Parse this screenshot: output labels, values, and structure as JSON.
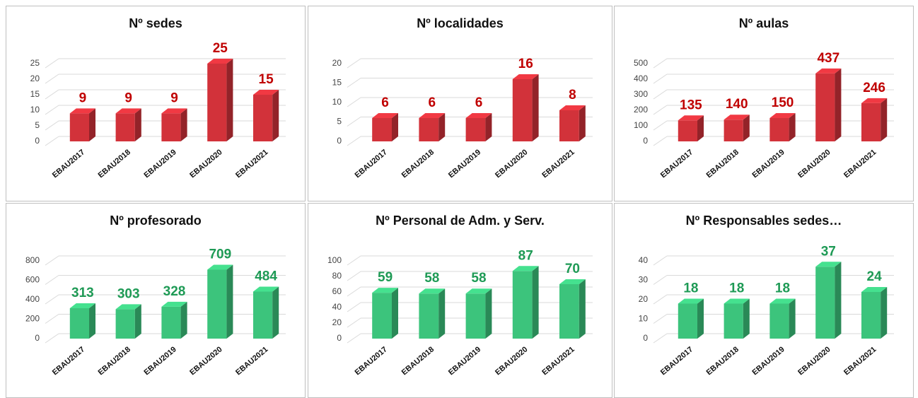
{
  "chart_data": [
    {
      "type": "bar3d",
      "title": "Nº sedes",
      "categories": [
        "EBAU2017",
        "EBAU2018",
        "EBAU2019",
        "EBAU2020",
        "EBAU2021"
      ],
      "values": [
        9,
        9,
        9,
        25,
        15
      ],
      "color": "#d2323a",
      "label_color": "#c00000",
      "ylim": [
        0,
        25
      ],
      "yticks": [
        0,
        5,
        10,
        15,
        20,
        25
      ],
      "grid": true
    },
    {
      "type": "bar3d",
      "title": "Nº localidades",
      "categories": [
        "EBAU2017",
        "EBAU2018",
        "EBAU2019",
        "EBAU2020",
        "EBAU2021"
      ],
      "values": [
        6,
        6,
        6,
        16,
        8
      ],
      "color": "#d2323a",
      "label_color": "#c00000",
      "ylim": [
        0,
        20
      ],
      "yticks": [
        0,
        5,
        10,
        15,
        20
      ],
      "grid": true
    },
    {
      "type": "bar3d",
      "title": "Nº aulas",
      "categories": [
        "EBAU2017",
        "EBAU2018",
        "EBAU2019",
        "EBAU2020",
        "EBAU2021"
      ],
      "values": [
        135,
        140,
        150,
        437,
        246
      ],
      "color": "#d2323a",
      "label_color": "#c00000",
      "ylim": [
        0,
        500
      ],
      "yticks": [
        0,
        100,
        200,
        300,
        400,
        500
      ],
      "grid": true
    },
    {
      "type": "bar3d",
      "title": "Nº profesorado",
      "categories": [
        "EBAU2017",
        "EBAU2018",
        "EBAU2019",
        "EBAU2020",
        "EBAU2021"
      ],
      "values": [
        313,
        303,
        328,
        709,
        484
      ],
      "color": "#3cc47c",
      "label_color": "#1e9a55",
      "ylim": [
        0,
        800
      ],
      "yticks": [
        0,
        200,
        400,
        600,
        800
      ],
      "grid": true
    },
    {
      "type": "bar3d",
      "title": "Nº Personal de Adm. y Serv.",
      "categories": [
        "EBAU2017",
        "EBAU2018",
        "EBAU2019",
        "EBAU2020",
        "EBAU2021"
      ],
      "values": [
        59,
        58,
        58,
        87,
        70
      ],
      "color": "#3cc47c",
      "label_color": "#1e9a55",
      "ylim": [
        0,
        100
      ],
      "yticks": [
        0,
        20,
        40,
        60,
        80,
        100
      ],
      "grid": true
    },
    {
      "type": "bar3d",
      "title": "Nº Responsables sedes…",
      "categories": [
        "EBAU2017",
        "EBAU2018",
        "EBAU2019",
        "EBAU2020",
        "EBAU2021"
      ],
      "values": [
        18,
        18,
        18,
        37,
        24
      ],
      "color": "#3cc47c",
      "label_color": "#1e9a55",
      "ylim": [
        0,
        40
      ],
      "yticks": [
        0,
        10,
        20,
        30,
        40
      ],
      "grid": true
    }
  ]
}
